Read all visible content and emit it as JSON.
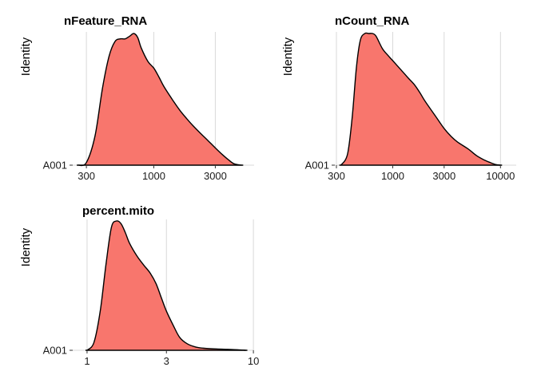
{
  "chart_data": [
    {
      "type": "area",
      "subtype": "ridgeline-density",
      "title": "nFeature_RNA",
      "ylabel": "Identity",
      "categories": [
        "A001"
      ],
      "x_scale": "log10",
      "xlim": [
        235,
        6000
      ],
      "xticks": [
        300,
        1000,
        3000
      ],
      "xtick_labels": [
        "300",
        "1000",
        "3000"
      ],
      "series": [
        {
          "category": "A001",
          "color": "#F8766D",
          "x": [
            260,
            300,
            350,
            400,
            450,
            500,
            550,
            600,
            650,
            700,
            750,
            800,
            900,
            1000,
            1100,
            1200,
            1400,
            1600,
            1800,
            2000,
            2300,
            2600,
            3000,
            3400,
            3800,
            4200,
            4800
          ],
          "density": [
            0.0,
            0.02,
            0.22,
            0.58,
            0.82,
            0.93,
            0.95,
            0.95,
            0.97,
            0.99,
            0.96,
            0.88,
            0.78,
            0.73,
            0.66,
            0.59,
            0.49,
            0.41,
            0.35,
            0.3,
            0.24,
            0.19,
            0.13,
            0.08,
            0.04,
            0.01,
            0.0
          ]
        }
      ]
    },
    {
      "type": "area",
      "subtype": "ridgeline-density",
      "title": "nCount_RNA",
      "ylabel": "Identity",
      "categories": [
        "A001"
      ],
      "x_scale": "log10",
      "xlim": [
        290,
        14000
      ],
      "xticks": [
        300,
        1000,
        3000,
        10000
      ],
      "xtick_labels": [
        "300",
        "1000",
        "3000",
        "10000"
      ],
      "series": [
        {
          "category": "A001",
          "color": "#F8766D",
          "x": [
            330,
            380,
            420,
            460,
            500,
            550,
            600,
            650,
            700,
            800,
            900,
            1000,
            1200,
            1400,
            1600,
            1800,
            2000,
            2500,
            3000,
            3500,
            4000,
            5000,
            6000,
            7000,
            8000,
            9000,
            10000
          ],
          "density": [
            0.0,
            0.08,
            0.35,
            0.72,
            0.92,
            0.97,
            0.97,
            0.97,
            0.95,
            0.86,
            0.81,
            0.77,
            0.7,
            0.64,
            0.59,
            0.53,
            0.47,
            0.36,
            0.27,
            0.21,
            0.17,
            0.12,
            0.07,
            0.04,
            0.02,
            0.005,
            0.0
          ]
        }
      ]
    },
    {
      "type": "area",
      "subtype": "ridgeline-density",
      "title": "percent.mito",
      "ylabel": "Identity",
      "categories": [
        "A001"
      ],
      "x_scale": "log10",
      "xlim": [
        0.82,
        10.1
      ],
      "xticks": [
        1,
        3,
        10
      ],
      "xtick_labels": [
        "1",
        "3",
        "10"
      ],
      "series": [
        {
          "category": "A001",
          "color": "#F8766D",
          "x": [
            1.0,
            1.1,
            1.2,
            1.3,
            1.4,
            1.5,
            1.6,
            1.7,
            1.8,
            2.0,
            2.2,
            2.4,
            2.6,
            2.8,
            3.0,
            3.3,
            3.6,
            4.0,
            4.5,
            5.0,
            6.0,
            7.0,
            8.0,
            9.0
          ],
          "density": [
            0.0,
            0.06,
            0.3,
            0.66,
            0.94,
            0.99,
            0.97,
            0.9,
            0.82,
            0.72,
            0.65,
            0.59,
            0.51,
            0.4,
            0.3,
            0.19,
            0.1,
            0.05,
            0.025,
            0.016,
            0.01,
            0.007,
            0.004,
            0.0
          ]
        }
      ]
    }
  ]
}
